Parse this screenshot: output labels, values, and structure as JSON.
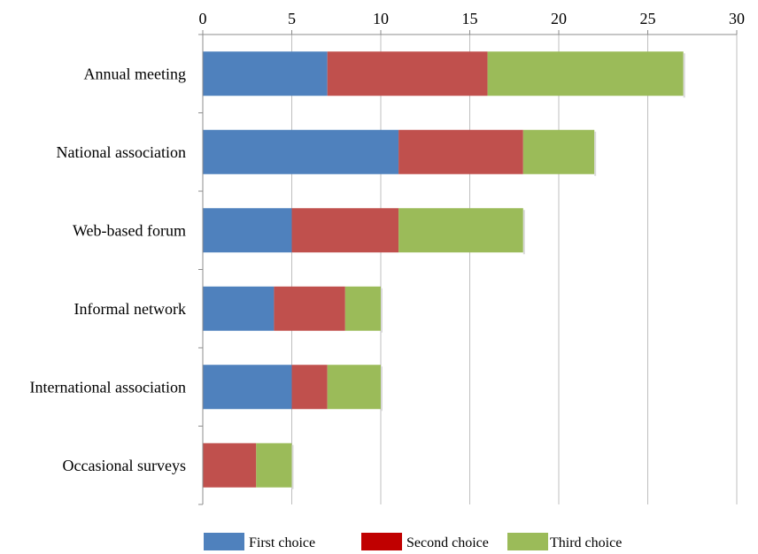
{
  "chart_data": {
    "type": "bar",
    "orientation": "horizontal",
    "stacked": true,
    "categories": [
      "Annual meeting",
      "National association",
      "Web-based forum",
      "Informal network",
      "International association",
      "Occasional surveys"
    ],
    "series": [
      {
        "name": "First choice",
        "color": "#4F81BD",
        "values": [
          7,
          11,
          5,
          4,
          5,
          0
        ]
      },
      {
        "name": "Second choice",
        "color": "#C0504D",
        "values": [
          9,
          7,
          6,
          4,
          2,
          3
        ]
      },
      {
        "name": "Third choice",
        "color": "#9BBB59",
        "values": [
          11,
          4,
          7,
          2,
          3,
          2
        ]
      }
    ],
    "xlim": [
      0,
      30
    ],
    "xticks": [
      0,
      5,
      10,
      15,
      20,
      25,
      30
    ],
    "x_axis_position": "top",
    "grid": true,
    "legend_position": "bottom",
    "legend_swatch_colors": [
      "#4F81BD",
      "#C00000",
      "#9BBB59"
    ]
  }
}
